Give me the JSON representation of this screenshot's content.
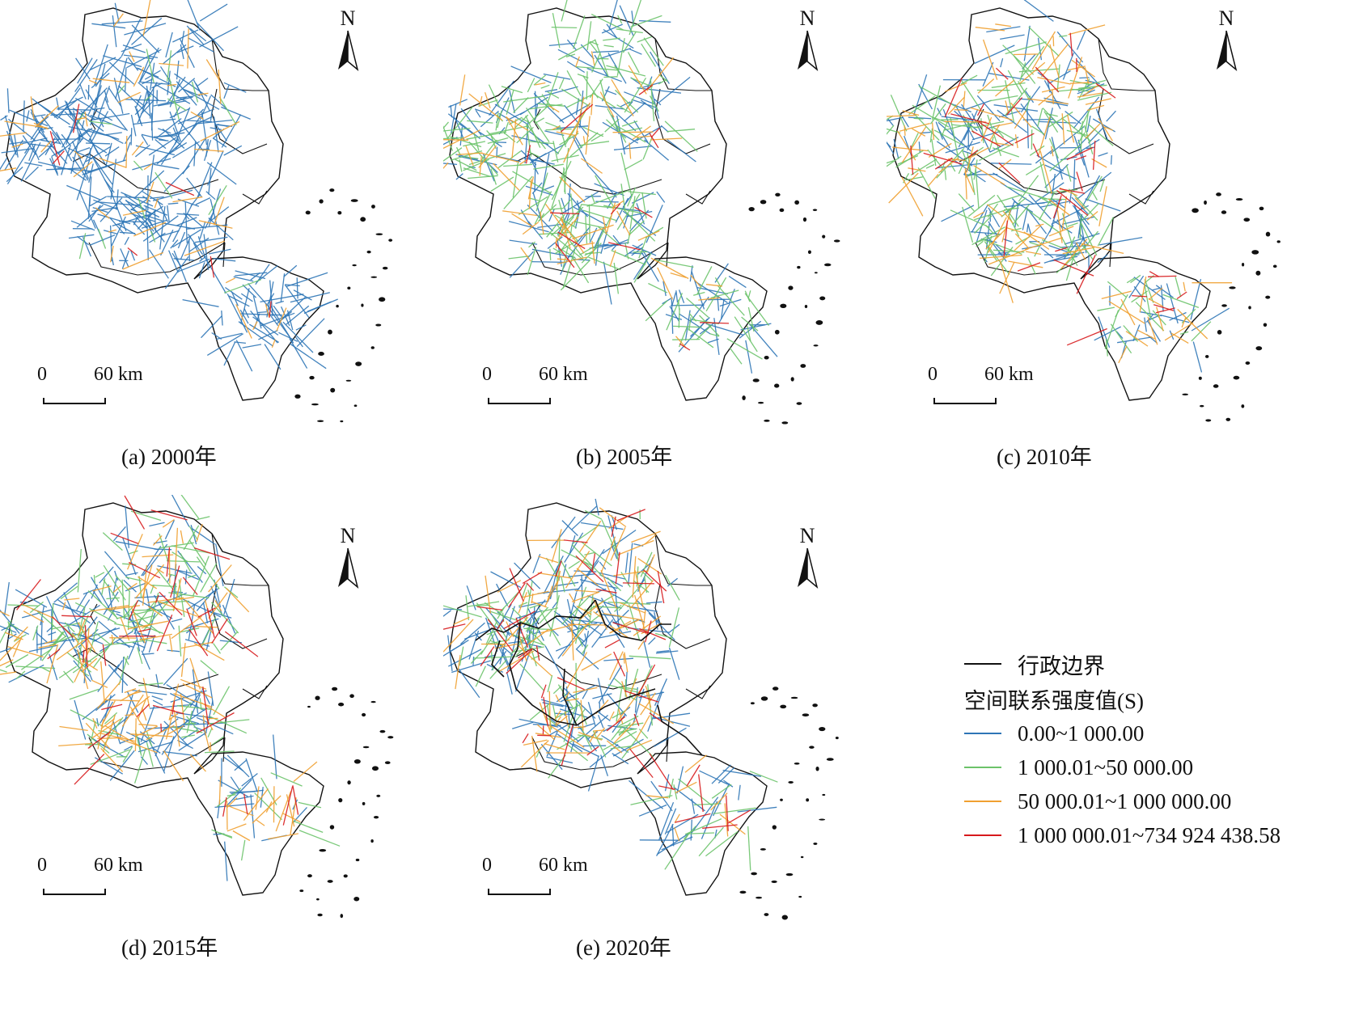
{
  "panels": [
    {
      "caption": "(a) 2000年",
      "scale_zero": "0",
      "scale_sixty": "60 km",
      "north": "N",
      "mix": {
        "blue": 0.86,
        "green": 0.03,
        "orange": 0.09,
        "red": 0.02
      },
      "admin_detail": false
    },
    {
      "caption": "(b) 2005年",
      "scale_zero": "0",
      "scale_sixty": "60 km",
      "north": "N",
      "mix": {
        "blue": 0.38,
        "green": 0.45,
        "orange": 0.14,
        "red": 0.03
      },
      "admin_detail": false
    },
    {
      "caption": "(c) 2010年",
      "scale_zero": "0",
      "scale_sixty": "60 km",
      "north": "N",
      "mix": {
        "blue": 0.38,
        "green": 0.34,
        "orange": 0.21,
        "red": 0.07
      },
      "admin_detail": false
    },
    {
      "caption": "(d) 2015年",
      "scale_zero": "0",
      "scale_sixty": "60 km",
      "north": "N",
      "mix": {
        "blue": 0.4,
        "green": 0.28,
        "orange": 0.23,
        "red": 0.09
      },
      "admin_detail": false
    },
    {
      "caption": "(e) 2020年",
      "scale_zero": "0",
      "scale_sixty": "60 km",
      "north": "N",
      "mix": {
        "blue": 0.42,
        "green": 0.26,
        "orange": 0.21,
        "red": 0.11
      },
      "admin_detail": true
    }
  ],
  "legend": {
    "boundary_label": "行政边界",
    "title": "空间联系强度值(S)",
    "classes": [
      {
        "label": "0.00~1 000.00",
        "color": "#2e75b6"
      },
      {
        "label": "1 000.01~50 000.00",
        "color": "#6cc36a"
      },
      {
        "label": "50 000.01~1 000 000.00",
        "color": "#f0a030"
      },
      {
        "label": "1 000 000.01~734 924 438.58",
        "color": "#d7191c"
      }
    ],
    "boundary_color": "#111111"
  }
}
